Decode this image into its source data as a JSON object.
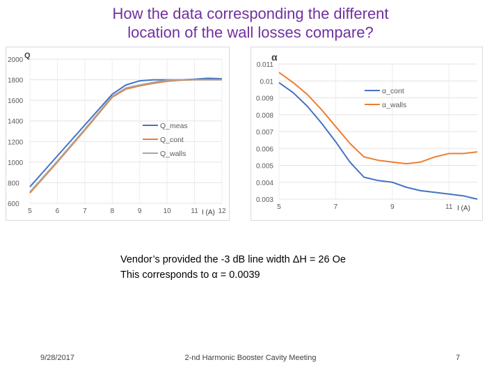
{
  "slide": {
    "title_line1": "How the data corresponding the different",
    "title_line2": "location of the wall losses compare?",
    "note_line1": "Vendor’s provided the -3 dB line width ΔH = 26 Oe",
    "note_line2": "This corresponds to α = 0.0039",
    "footer_date": "9/28/2017",
    "footer_center": "2-nd Harmonic Booster Cavity Meeting",
    "footer_page": "7"
  },
  "colors": {
    "title": "#7030a0",
    "blue": "#4472c4",
    "orange": "#ed7d31",
    "gray": "#a5a5a5"
  },
  "chart_data": [
    {
      "type": "line",
      "ylabel": "Q",
      "xlabel": "I (A)",
      "xlim": [
        5,
        12
      ],
      "ylim": [
        600,
        2000
      ],
      "xticks": [
        5,
        6,
        7,
        8,
        9,
        10,
        11,
        12
      ],
      "yticks": [
        600,
        800,
        1000,
        1200,
        1400,
        1600,
        1800,
        2000
      ],
      "grid": true,
      "legend_position": "center-right",
      "series": [
        {
          "name": "Q_meas",
          "color": "#4472c4",
          "x": [
            5,
            6,
            7,
            7.5,
            8,
            8.5,
            9,
            9.5,
            10,
            10.5,
            11,
            11.5,
            12
          ],
          "y": [
            760,
            1060,
            1360,
            1510,
            1660,
            1750,
            1790,
            1800,
            1800,
            1800,
            1805,
            1815,
            1810
          ]
        },
        {
          "name": "Q_cont",
          "color": "#ed7d31",
          "x": [
            5,
            6,
            7,
            7.5,
            8,
            8.5,
            9,
            9.5,
            10,
            10.5,
            11,
            11.5,
            12
          ],
          "y": [
            700,
            1000,
            1310,
            1470,
            1630,
            1710,
            1740,
            1765,
            1785,
            1795,
            1800,
            1800,
            1800
          ]
        },
        {
          "name": "Q_walls",
          "color": "#a5a5a5",
          "x": [
            5,
            6,
            7,
            7.5,
            8,
            8.5,
            9,
            9.5,
            10,
            10.5,
            11,
            11.5,
            12
          ],
          "y": [
            710,
            1010,
            1320,
            1480,
            1640,
            1720,
            1750,
            1775,
            1795,
            1800,
            1800,
            1800,
            1800
          ]
        }
      ]
    },
    {
      "type": "line",
      "ylabel": "α",
      "xlabel": "I (A)",
      "xlim": [
        5,
        12
      ],
      "ylim": [
        0.003,
        0.011
      ],
      "xticks": [
        5,
        7,
        9,
        11
      ],
      "yticks": [
        0.003,
        0.004,
        0.005,
        0.006,
        0.007,
        0.008,
        0.009,
        0.01,
        0.011
      ],
      "grid": true,
      "legend_position": "top-right",
      "series": [
        {
          "name": "α_cont",
          "color": "#4472c4",
          "x": [
            5,
            5.5,
            6,
            6.5,
            7,
            7.5,
            8,
            8.5,
            9,
            9.5,
            10,
            10.5,
            11,
            11.5,
            12
          ],
          "y": [
            0.0099,
            0.0093,
            0.0085,
            0.0075,
            0.0064,
            0.0052,
            0.0043,
            0.0041,
            0.004,
            0.0037,
            0.0035,
            0.0034,
            0.0033,
            0.0032,
            0.003
          ]
        },
        {
          "name": "α_walls",
          "color": "#ed7d31",
          "x": [
            5,
            5.5,
            6,
            6.5,
            7,
            7.5,
            8,
            8.5,
            9,
            9.5,
            10,
            10.5,
            11,
            11.5,
            12
          ],
          "y": [
            0.0105,
            0.0099,
            0.0092,
            0.0083,
            0.0073,
            0.0063,
            0.0055,
            0.0053,
            0.0052,
            0.0051,
            0.0052,
            0.0055,
            0.0057,
            0.0057,
            0.0058
          ]
        }
      ]
    }
  ]
}
